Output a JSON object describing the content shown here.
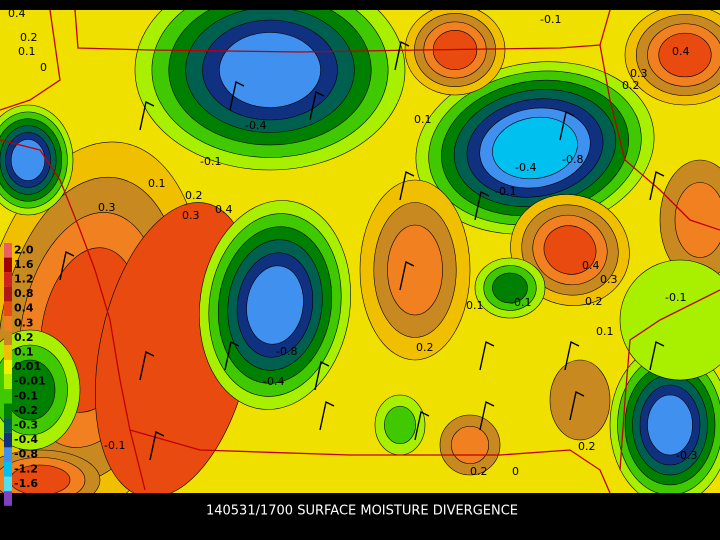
{
  "title": "140531/1700 SURFACE MOISTURE DIVERGENCE",
  "legend": {
    "items": [
      {
        "label": "2.0",
        "color": "#e86060"
      },
      {
        "label": "1.6",
        "color": "#a00000"
      },
      {
        "label": "1.2",
        "color": "#d02020"
      },
      {
        "label": "0.8",
        "color": "#b01818"
      },
      {
        "label": "0.4",
        "color": "#e84a10"
      },
      {
        "label": "0.3",
        "color": "#f08020"
      },
      {
        "label": "0.2",
        "color": "#c88a20"
      },
      {
        "label": "0.1",
        "color": "#f0c000"
      },
      {
        "label": "0.01",
        "color": "#f0f000"
      },
      {
        "label": "-0.01",
        "color": "#a8f000"
      },
      {
        "label": "-0.1",
        "color": "#40c800"
      },
      {
        "label": "-0.2",
        "color": "#008000"
      },
      {
        "label": "-0.3",
        "color": "#006050"
      },
      {
        "label": "-0.4",
        "color": "#103080"
      },
      {
        "label": "-0.8",
        "color": "#4090f0"
      },
      {
        "label": "-1.2",
        "color": "#00c0f0"
      },
      {
        "label": "-1.6",
        "color": "#50e0f0"
      }
    ],
    "bottom_color": "#8040c0"
  },
  "contour_labels": [
    "0.4",
    "0.2",
    "0.1",
    "0",
    "-0.1",
    "0.4",
    "0.3",
    "0.2",
    "-0.4",
    "0.1",
    "-0.4",
    "-0.8",
    "0.3",
    "0.4",
    "-0.1",
    "0.1",
    "-0.1",
    "0.3",
    "0.2",
    "-0.8",
    "-0.4",
    "0.4",
    "0.3",
    "0.2",
    "-0.1",
    "0.1",
    "-0.1",
    "0.1",
    "0.2",
    "-0.3",
    "0.2",
    "-0.1",
    "0.2",
    "0"
  ]
}
